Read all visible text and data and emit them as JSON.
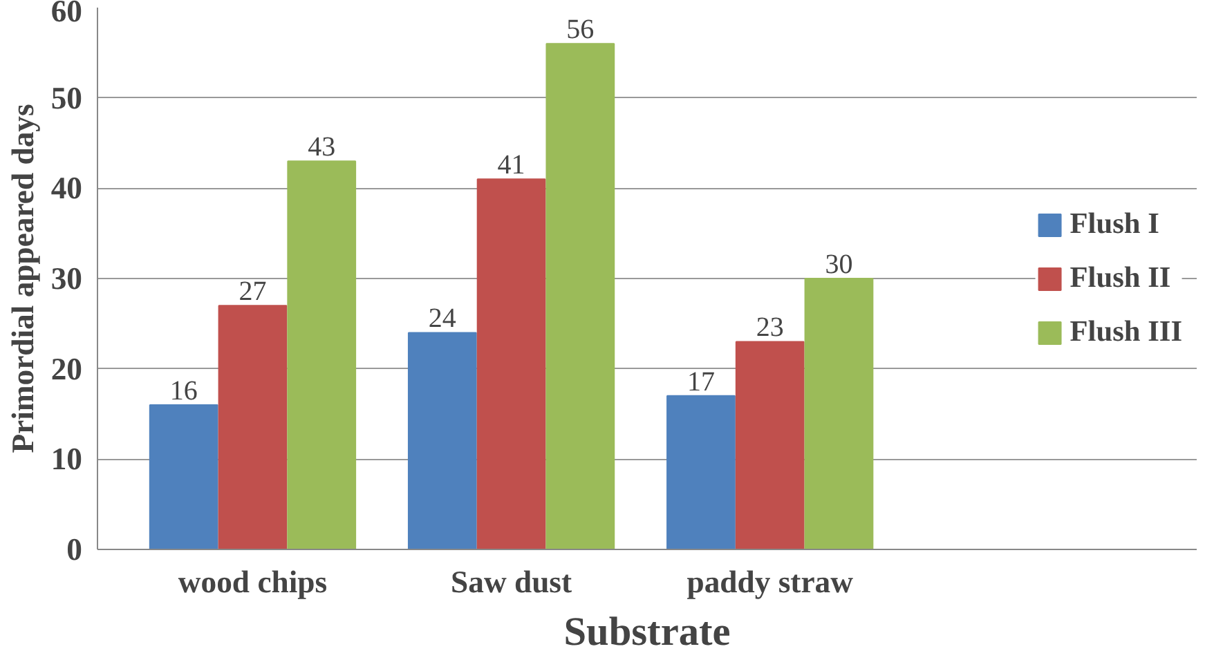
{
  "chart_data": {
    "type": "bar",
    "xlabel": "Substrate",
    "ylabel": "Primordial appeared days",
    "categories": [
      "wood chips",
      "Saw dust",
      "paddy straw"
    ],
    "series": [
      {
        "name": "Flush I",
        "color": "#4f81bd",
        "values": [
          16,
          24,
          17
        ]
      },
      {
        "name": "Flush II",
        "color": "#c0504d",
        "values": [
          27,
          41,
          23
        ]
      },
      {
        "name": "Flush III",
        "color": "#9bbb59",
        "values": [
          43,
          56,
          30
        ]
      }
    ],
    "ylim": [
      0,
      60
    ],
    "yticks": [
      0,
      10,
      20,
      30,
      40,
      50,
      60
    ],
    "grid": "y",
    "legend": "right",
    "data_labels": true
  }
}
